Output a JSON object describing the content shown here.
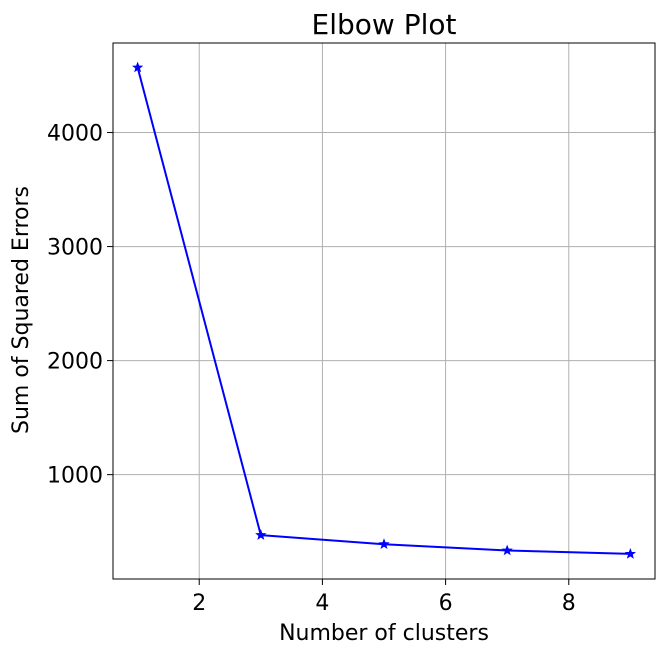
{
  "chart_data": {
    "type": "line",
    "title": "Elbow Plot",
    "xlabel": "Number of clusters",
    "ylabel": "Sum of Squared Errors",
    "x": [
      1,
      3,
      5,
      7,
      9
    ],
    "series": [
      {
        "values": [
          4570,
          470,
          390,
          335,
          305
        ],
        "color": "#0000ff",
        "marker": "star"
      }
    ],
    "xlim": [
      0.6,
      9.4
    ],
    "ylim": [
      85,
      4785
    ],
    "xticks": [
      2,
      4,
      6,
      8
    ],
    "xtick_labels": [
      "2",
      "4",
      "6",
      "8"
    ],
    "yticks": [
      1000,
      2000,
      3000,
      4000
    ],
    "ytick_labels": [
      "1000",
      "2000",
      "3000",
      "4000"
    ],
    "grid": true,
    "legend": false
  }
}
